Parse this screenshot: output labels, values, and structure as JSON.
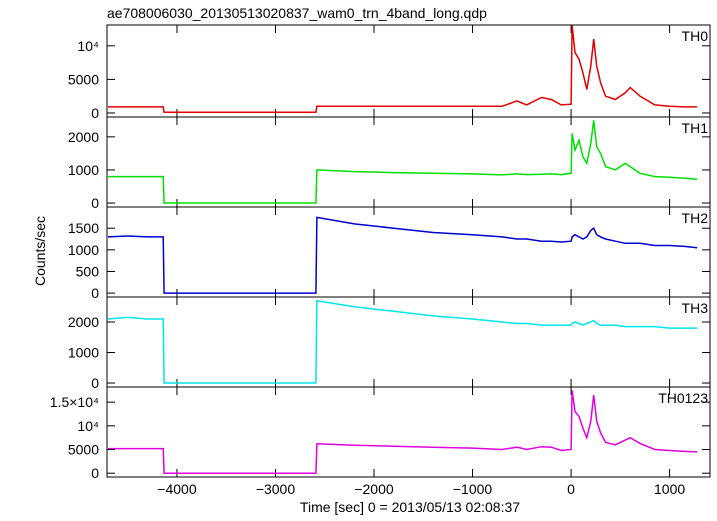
{
  "chart_data": {
    "type": "line",
    "title": "ae708006030_20130513020837_wam0_trn_4band_long.qdp",
    "xlabel": "Time [sec] 0 = 2013/05/13 02:08:37",
    "ylabel": "Counts/sec",
    "xlim": [
      -4710,
      1410
    ],
    "xticks": [
      {
        "value": -4000,
        "label": "−4000"
      },
      {
        "value": -3000,
        "label": "−3000"
      },
      {
        "value": -2000,
        "label": "−2000"
      },
      {
        "value": -1000,
        "label": "−1000"
      },
      0,
      1000
    ],
    "x": [
      -4700,
      -4500,
      -4300,
      -4140,
      -4130,
      -3500,
      -3000,
      -2590,
      -2580,
      -2200,
      -1800,
      -1400,
      -1000,
      -700,
      -550,
      -450,
      -300,
      -200,
      -100,
      0,
      10,
      40,
      80,
      120,
      160,
      200,
      230,
      260,
      300,
      350,
      450,
      550,
      600,
      700,
      850,
      1000,
      1150,
      1280
    ],
    "series": [
      {
        "name": "TH0",
        "color": "#e00000",
        "ylim": [
          -600,
          13100
        ],
        "yticks": [
          0,
          5000,
          {
            "value": 10000,
            "label": "10⁴"
          }
        ],
        "values": [
          900,
          900,
          900,
          900,
          100,
          100,
          100,
          100,
          1000,
          1000,
          1000,
          1000,
          1000,
          1000,
          1800,
          1200,
          2300,
          2000,
          1200,
          1300,
          13000,
          9000,
          8000,
          6000,
          3500,
          7000,
          11000,
          7000,
          4500,
          2500,
          2000,
          3000,
          3800,
          2500,
          1200,
          1000,
          900,
          900
        ]
      },
      {
        "name": "TH1",
        "color": "#00e000",
        "ylim": [
          -120,
          2600
        ],
        "yticks": [
          0,
          1000,
          2000
        ],
        "values": [
          800,
          800,
          800,
          800,
          0,
          0,
          0,
          0,
          1000,
          950,
          920,
          900,
          880,
          850,
          880,
          860,
          870,
          880,
          860,
          900,
          2100,
          1600,
          1900,
          1400,
          1200,
          1800,
          2500,
          1700,
          1500,
          1100,
          1000,
          1200,
          1100,
          900,
          800,
          780,
          750,
          720
        ]
      },
      {
        "name": "TH2",
        "color": "#0000d0",
        "ylim": [
          -90,
          1990
        ],
        "yticks": [
          0,
          500,
          1000,
          1500
        ],
        "values": [
          1300,
          1320,
          1300,
          1300,
          0,
          0,
          0,
          0,
          1750,
          1600,
          1500,
          1400,
          1350,
          1300,
          1250,
          1250,
          1200,
          1200,
          1180,
          1200,
          1300,
          1350,
          1300,
          1250,
          1300,
          1450,
          1500,
          1350,
          1300,
          1250,
          1200,
          1150,
          1150,
          1150,
          1100,
          1100,
          1080,
          1050
        ]
      },
      {
        "name": "TH3",
        "color": "#00e5ee",
        "ylim": [
          -130,
          2820
        ],
        "yticks": [
          0,
          1000,
          2000
        ],
        "values": [
          2100,
          2150,
          2100,
          2100,
          0,
          0,
          0,
          0,
          2700,
          2500,
          2350,
          2200,
          2100,
          2000,
          1950,
          1950,
          1900,
          1900,
          1900,
          1900,
          1950,
          2000,
          1950,
          1900,
          1950,
          2000,
          2050,
          1950,
          1900,
          1900,
          1900,
          1850,
          1850,
          1850,
          1850,
          1800,
          1800,
          1800
        ]
      },
      {
        "name": "TH0123",
        "color": "#e000e0",
        "ylim": [
          -800,
          18200
        ],
        "yticks": [
          0,
          5000,
          {
            "value": 10000,
            "label": "10⁴"
          },
          {
            "value": 15000,
            "label": "1.5×10⁴"
          }
        ],
        "values": [
          5200,
          5200,
          5200,
          5200,
          0,
          0,
          0,
          0,
          6200,
          5900,
          5700,
          5500,
          5300,
          5000,
          5500,
          5000,
          5600,
          5500,
          4800,
          5000,
          17500,
          13000,
          12000,
          9500,
          7500,
          11000,
          16500,
          11000,
          8500,
          6500,
          6000,
          7000,
          7500,
          6300,
          5000,
          4800,
          4600,
          4500
        ]
      }
    ]
  }
}
